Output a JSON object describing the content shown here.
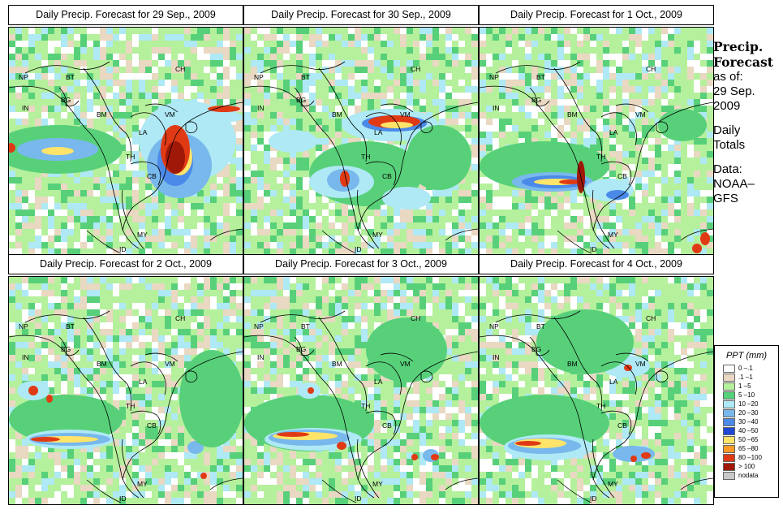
{
  "colors": {
    "p0_1": "#ffffff",
    "p01_1": "#e9d8c2",
    "p1_5": "#b5f09c",
    "p5_10": "#58d07a",
    "p10_20": "#aee9f5",
    "p20_30": "#78b8ec",
    "p30_40": "#4b8ae8",
    "p40_50": "#1f47d4",
    "p50_65": "#ffe46a",
    "p65_80": "#ff9a28",
    "p80_100": "#e03a14",
    "p100": "#a01808",
    "nodata": "#c8c8c8"
  },
  "panels": [
    {
      "title": "Daily Precip. Forecast for  29 Sep., 2009"
    },
    {
      "title": "Daily Precip. Forecast for  30 Sep., 2009"
    },
    {
      "title": "Daily Precip. Forecast for  1 Oct., 2009"
    },
    {
      "title": "Daily Precip. Forecast for  2 Oct., 2009"
    },
    {
      "title": "Daily Precip. Forecast for  3 Oct., 2009"
    },
    {
      "title": "Daily Precip. Forecast for  4 Oct., 2009"
    }
  ],
  "map_labels": {
    "np": "NP",
    "bt": "BT",
    "ch": "CH",
    "in": "IN",
    "bg": "BG",
    "bm": "BM",
    "vm": "VM",
    "la": "LA",
    "th": "TH",
    "cb": "CB",
    "my": "MY",
    "id": "ID"
  },
  "sidebar": {
    "title_line1": "Precip.",
    "title_line2": "Forecast",
    "asof": "as of:",
    "date_line1": "29 Sep.",
    "date_line2": "2009",
    "daily_line1": "Daily",
    "daily_line2": "Totals",
    "data_line1": "Data:",
    "data_line2": "NOAA–",
    "data_line3": "GFS"
  },
  "legend": {
    "title": "PPT (mm)",
    "items": [
      {
        "label": "0 –.1",
        "color": "#ffffff"
      },
      {
        "label": ".1 –1",
        "color": "#e9d8c2"
      },
      {
        "label": "1 –5",
        "color": "#b5f09c"
      },
      {
        "label": "5 –10",
        "color": "#58d07a"
      },
      {
        "label": "10 –20",
        "color": "#aee9f5"
      },
      {
        "label": "20 –30",
        "color": "#78b8ec"
      },
      {
        "label": "30 –40",
        "color": "#4b8ae8"
      },
      {
        "label": "40 –50",
        "color": "#1f47d4"
      },
      {
        "label": "50 –65",
        "color": "#ffe46a"
      },
      {
        "label": "65 –80",
        "color": "#ff9a28"
      },
      {
        "label": "80 –100",
        "color": "#e03a14"
      },
      {
        "label": "> 100",
        "color": "#a01808"
      },
      {
        "label": "nodata",
        "color": "#c8c8c8"
      }
    ]
  }
}
